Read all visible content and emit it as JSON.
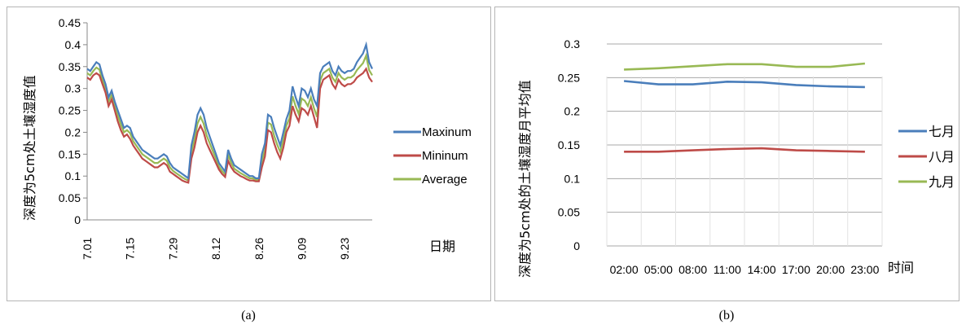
{
  "chart_data": [
    {
      "type": "line",
      "panel": "(a)",
      "title": "",
      "xlabel": "日期",
      "ylabel": "深度为5cm处土壤湿度值",
      "ylim": [
        0,
        0.45
      ],
      "yticks": [
        "0",
        "0.05",
        "0.1",
        "0.15",
        "0.2",
        "0.25",
        "0.3",
        "0.35",
        "0.4",
        "0.45"
      ],
      "xticks": [
        "7.01",
        "7.15",
        "7.29",
        "8.12",
        "8.26",
        "9.09",
        "9.23"
      ],
      "legend_position": "right",
      "series": [
        {
          "name": "Maxinum",
          "color": "#4a7ebb",
          "values": [
            0.345,
            0.34,
            0.35,
            0.36,
            0.355,
            0.33,
            0.31,
            0.28,
            0.295,
            0.27,
            0.25,
            0.23,
            0.21,
            0.215,
            0.21,
            0.19,
            0.18,
            0.17,
            0.16,
            0.155,
            0.15,
            0.145,
            0.14,
            0.14,
            0.145,
            0.15,
            0.145,
            0.13,
            0.12,
            0.115,
            0.11,
            0.105,
            0.1,
            0.095,
            0.17,
            0.2,
            0.24,
            0.255,
            0.24,
            0.21,
            0.19,
            0.17,
            0.15,
            0.13,
            0.12,
            0.11,
            0.16,
            0.14,
            0.125,
            0.12,
            0.115,
            0.11,
            0.105,
            0.1,
            0.1,
            0.095,
            0.095,
            0.15,
            0.175,
            0.24,
            0.235,
            0.21,
            0.19,
            0.17,
            0.2,
            0.23,
            0.25,
            0.305,
            0.28,
            0.26,
            0.3,
            0.295,
            0.28,
            0.3,
            0.275,
            0.26,
            0.335,
            0.35,
            0.355,
            0.36,
            0.34,
            0.33,
            0.35,
            0.34,
            0.335,
            0.34,
            0.34,
            0.345,
            0.36,
            0.37,
            0.38,
            0.4,
            0.36,
            0.345
          ]
        },
        {
          "name": "Mininum",
          "color": "#be4b48",
          "values": [
            0.325,
            0.32,
            0.33,
            0.335,
            0.33,
            0.31,
            0.29,
            0.26,
            0.275,
            0.25,
            0.225,
            0.205,
            0.19,
            0.195,
            0.185,
            0.17,
            0.16,
            0.15,
            0.14,
            0.135,
            0.13,
            0.125,
            0.12,
            0.12,
            0.125,
            0.13,
            0.125,
            0.11,
            0.105,
            0.1,
            0.095,
            0.09,
            0.087,
            0.085,
            0.14,
            0.165,
            0.2,
            0.215,
            0.2,
            0.175,
            0.16,
            0.145,
            0.13,
            0.115,
            0.105,
            0.098,
            0.135,
            0.12,
            0.11,
            0.105,
            0.1,
            0.097,
            0.093,
            0.09,
            0.09,
            0.088,
            0.088,
            0.12,
            0.145,
            0.205,
            0.2,
            0.175,
            0.155,
            0.14,
            0.165,
            0.2,
            0.215,
            0.26,
            0.24,
            0.225,
            0.255,
            0.25,
            0.24,
            0.26,
            0.235,
            0.21,
            0.3,
            0.32,
            0.325,
            0.33,
            0.31,
            0.3,
            0.32,
            0.31,
            0.305,
            0.31,
            0.31,
            0.315,
            0.325,
            0.33,
            0.335,
            0.345,
            0.325,
            0.315
          ]
        },
        {
          "name": "Average",
          "color": "#98b954",
          "values": [
            0.335,
            0.33,
            0.34,
            0.348,
            0.343,
            0.32,
            0.3,
            0.27,
            0.285,
            0.26,
            0.238,
            0.218,
            0.2,
            0.205,
            0.198,
            0.18,
            0.17,
            0.16,
            0.15,
            0.145,
            0.14,
            0.135,
            0.13,
            0.13,
            0.135,
            0.14,
            0.135,
            0.12,
            0.112,
            0.107,
            0.102,
            0.097,
            0.093,
            0.09,
            0.155,
            0.182,
            0.22,
            0.235,
            0.22,
            0.192,
            0.175,
            0.157,
            0.14,
            0.122,
            0.112,
            0.104,
            0.148,
            0.13,
            0.117,
            0.112,
            0.107,
            0.103,
            0.099,
            0.095,
            0.095,
            0.091,
            0.091,
            0.135,
            0.16,
            0.222,
            0.218,
            0.192,
            0.172,
            0.155,
            0.182,
            0.215,
            0.232,
            0.282,
            0.26,
            0.242,
            0.277,
            0.272,
            0.26,
            0.28,
            0.255,
            0.235,
            0.318,
            0.335,
            0.34,
            0.345,
            0.325,
            0.315,
            0.335,
            0.325,
            0.32,
            0.325,
            0.325,
            0.33,
            0.342,
            0.35,
            0.358,
            0.375,
            0.342,
            0.33
          ]
        }
      ]
    },
    {
      "type": "line",
      "panel": "(b)",
      "title": "",
      "xlabel": "时间",
      "ylabel": "深度为5cm处的土壤湿度月平均值",
      "ylim": [
        0,
        0.3
      ],
      "yticks": [
        "0",
        "0.05",
        "0.1",
        "0.15",
        "0.2",
        "0.25",
        "0.3"
      ],
      "categories": [
        "02:00",
        "05:00",
        "08:00",
        "11:00",
        "14:00",
        "17:00",
        "20:00",
        "23:00"
      ],
      "legend_position": "right",
      "series": [
        {
          "name": "七月",
          "color": "#4a7ebb",
          "values": [
            0.245,
            0.24,
            0.24,
            0.244,
            0.243,
            0.239,
            0.237,
            0.236
          ]
        },
        {
          "name": "八月",
          "color": "#be4b48",
          "values": [
            0.14,
            0.14,
            0.142,
            0.144,
            0.145,
            0.142,
            0.141,
            0.14
          ]
        },
        {
          "name": "九月",
          "color": "#98b954",
          "values": [
            0.262,
            0.264,
            0.267,
            0.27,
            0.27,
            0.266,
            0.266,
            0.271
          ]
        }
      ]
    }
  ],
  "captions": {
    "a": "(a)",
    "b": "(b)"
  }
}
